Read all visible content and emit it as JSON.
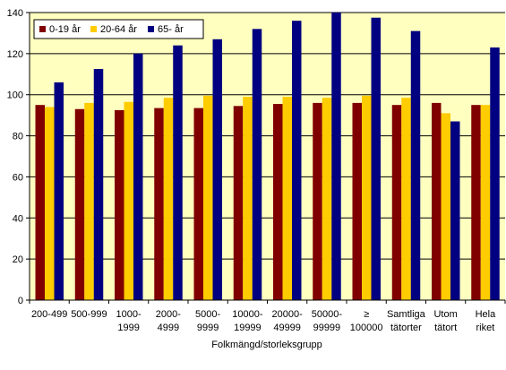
{
  "chart_data": {
    "type": "bar",
    "xlabel": "Folkmängd/storleksgrupp",
    "ylabel": "",
    "ylim": [
      0,
      140
    ],
    "ytick_step": 20,
    "grid": true,
    "legend_position": "top-left",
    "plot_background": "#ffffc0",
    "categories": [
      [
        "200-499"
      ],
      [
        "500-999"
      ],
      [
        "1000-",
        "1999"
      ],
      [
        "2000-",
        "4999"
      ],
      [
        "5000-",
        "9999"
      ],
      [
        "10000-",
        "19999"
      ],
      [
        "20000-",
        "49999"
      ],
      [
        "50000-",
        "99999"
      ],
      [
        "≥",
        "100000"
      ],
      [
        "Samtliga",
        "tätorter"
      ],
      [
        "Utom",
        "tätort"
      ],
      [
        "Hela",
        "riket"
      ]
    ],
    "series": [
      {
        "name": "0-19 år",
        "color": "#800000",
        "values": [
          95,
          93,
          92.5,
          93.5,
          93.5,
          94.5,
          95.5,
          96,
          96,
          95,
          96,
          95
        ]
      },
      {
        "name": "20-64 år",
        "color": "#ffcc00",
        "values": [
          94,
          96,
          96.5,
          98.5,
          99.5,
          99,
          99,
          98.5,
          99.5,
          98.5,
          91,
          95
        ]
      },
      {
        "name": "65- år",
        "color": "#000080",
        "values": [
          106,
          112.5,
          120,
          124,
          127,
          132,
          136,
          140,
          137.5,
          131,
          87,
          123
        ]
      }
    ]
  }
}
